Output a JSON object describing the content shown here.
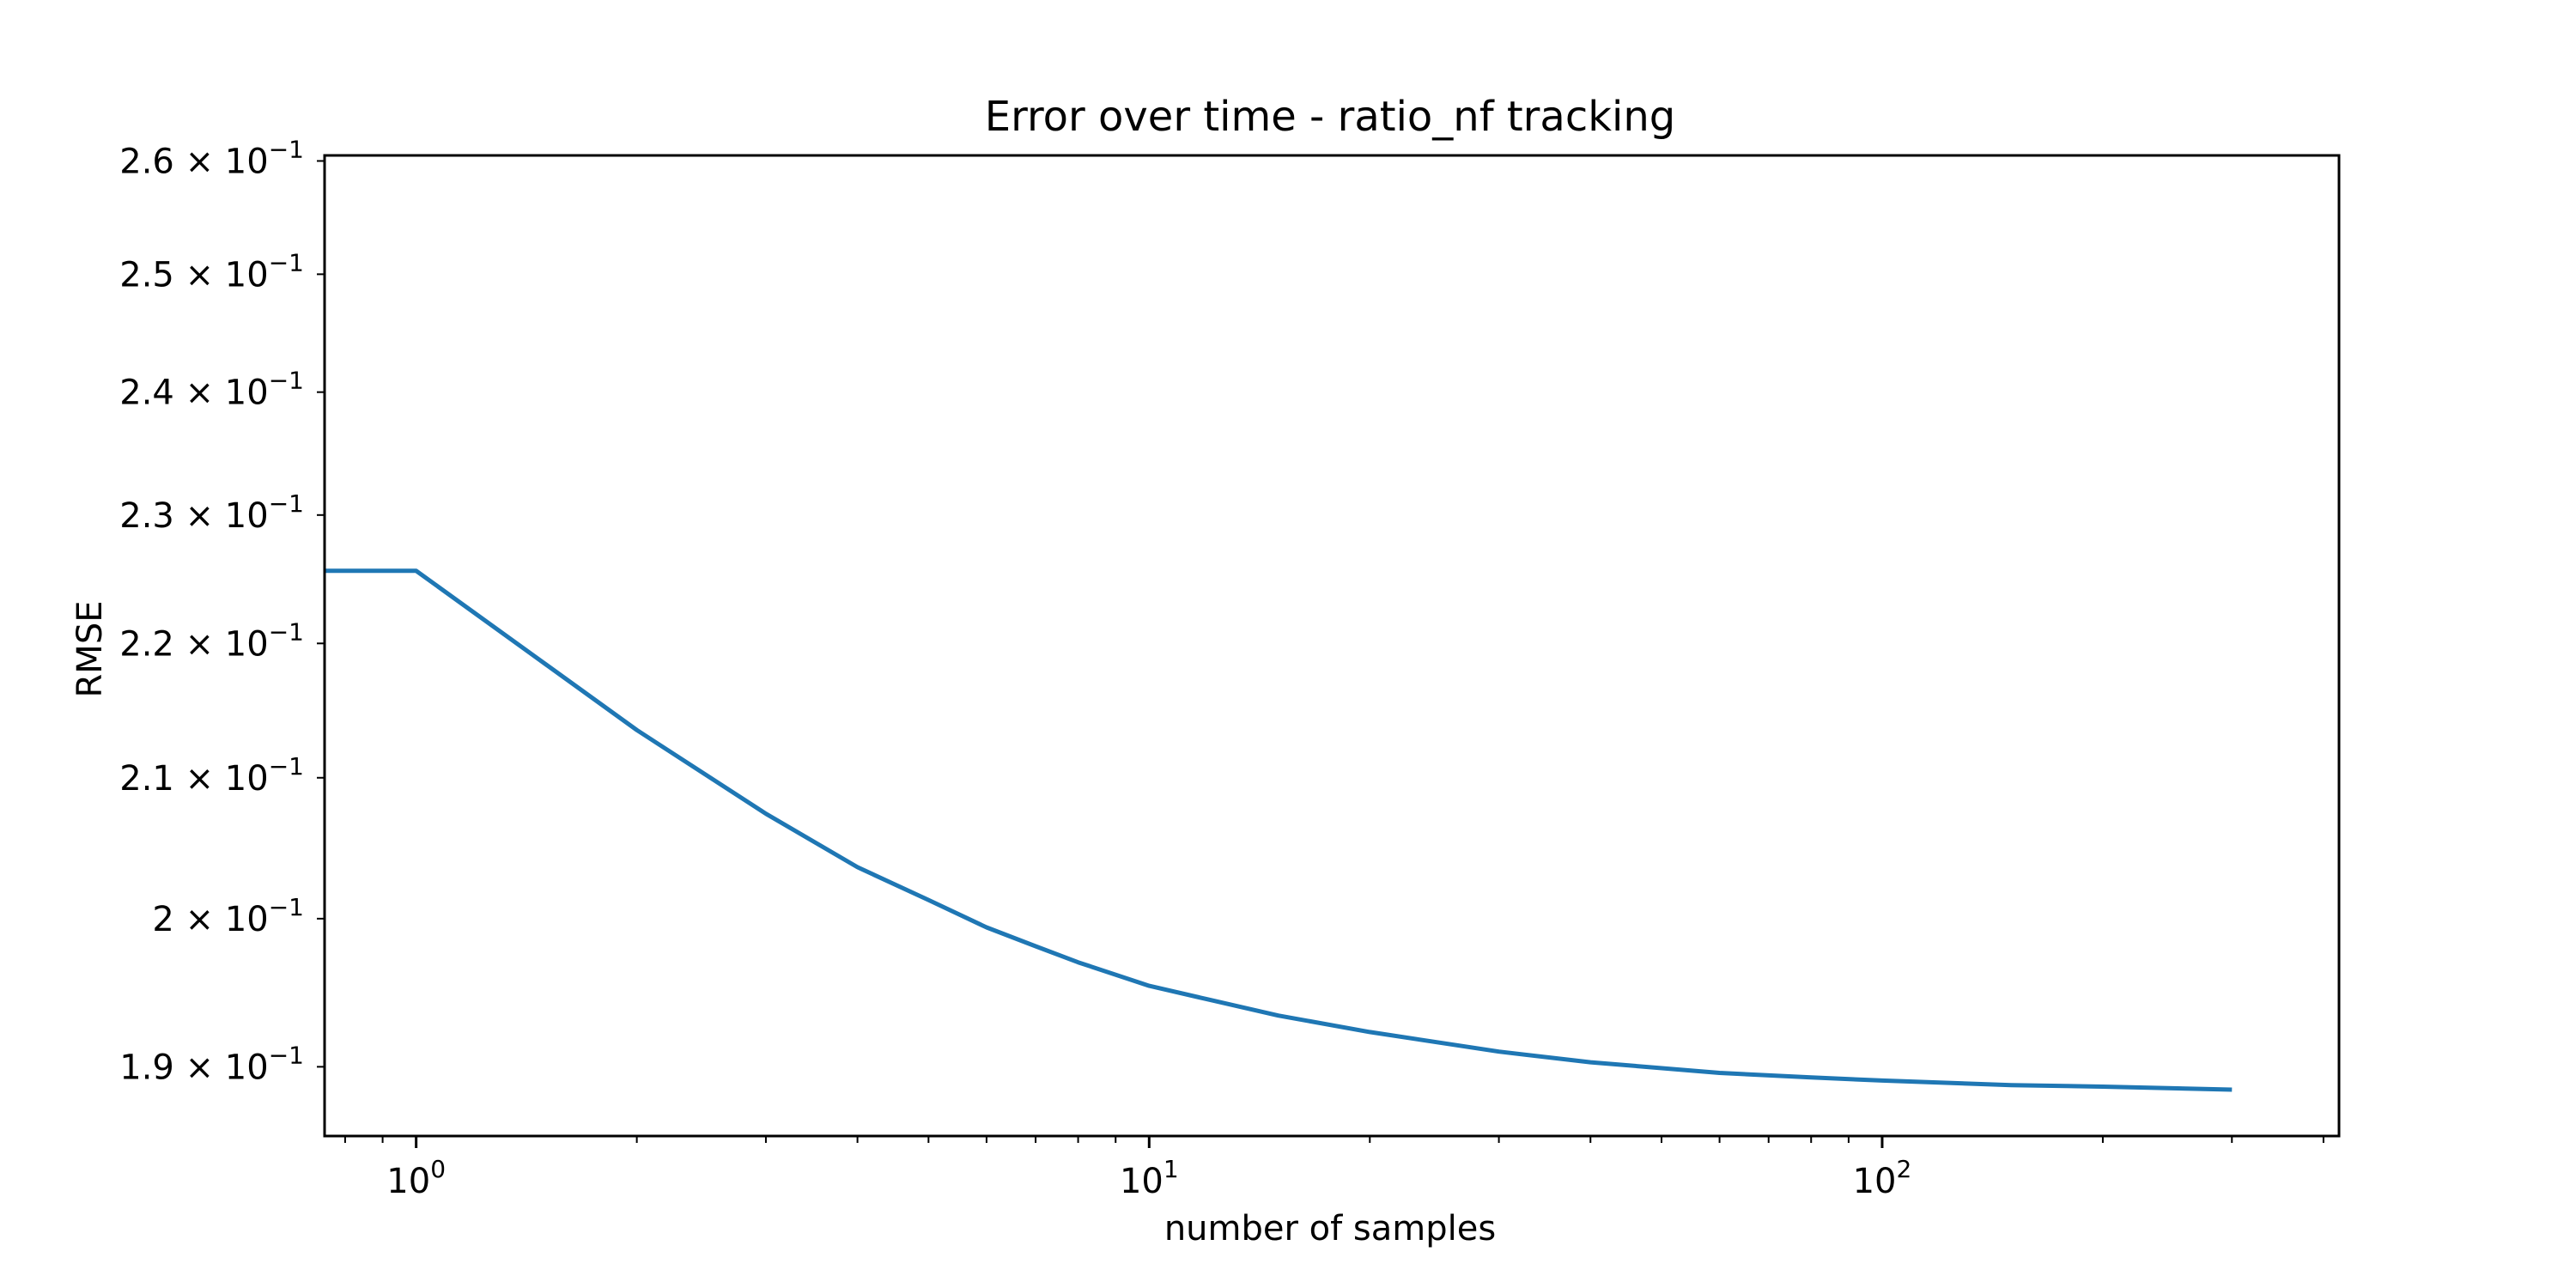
{
  "chart_data": {
    "type": "line",
    "title": "Error over time - ratio_nf tracking",
    "xlabel": "number of samples",
    "ylabel": "RMSE",
    "xscale": "log",
    "yscale": "log",
    "xlim": [
      0.75,
      420
    ],
    "ylim": [
      0.1855,
      0.2605
    ],
    "grid": false,
    "legend": "none",
    "x_ticks": [
      {
        "value": 1,
        "base": "10",
        "exp": "0"
      },
      {
        "value": 10,
        "base": "10",
        "exp": "1"
      },
      {
        "value": 100,
        "base": "10",
        "exp": "2"
      }
    ],
    "y_ticks": [
      {
        "value": 0.19,
        "mantissa": "1.9",
        "base": "10",
        "exp": "−1"
      },
      {
        "value": 0.2,
        "mantissa": "2",
        "base": "10",
        "exp": "−1"
      },
      {
        "value": 0.21,
        "mantissa": "2.1",
        "base": "10",
        "exp": "−1"
      },
      {
        "value": 0.22,
        "mantissa": "2.2",
        "base": "10",
        "exp": "−1"
      },
      {
        "value": 0.23,
        "mantissa": "2.3",
        "base": "10",
        "exp": "−1"
      },
      {
        "value": 0.24,
        "mantissa": "2.4",
        "base": "10",
        "exp": "−1"
      },
      {
        "value": 0.25,
        "mantissa": "2.5",
        "base": "10",
        "exp": "−1"
      },
      {
        "value": 0.26,
        "mantissa": "2.6",
        "base": "10",
        "exp": "−1"
      }
    ],
    "series": [
      {
        "color": "#1f77b4",
        "x": [
          0.75,
          1,
          2,
          3,
          4,
          5,
          6,
          7,
          8,
          10,
          12,
          15,
          20,
          30,
          40,
          60,
          80,
          100,
          150,
          200,
          300
        ],
        "y": [
          0.2256,
          0.2256,
          0.2135,
          0.2074,
          0.2036,
          0.2013,
          0.1994,
          0.1981,
          0.197,
          0.1954,
          0.1945,
          0.1934,
          0.1923,
          0.191,
          0.1903,
          0.1896,
          0.1893,
          0.1891,
          0.1888,
          0.1887,
          0.1885
        ]
      }
    ]
  }
}
